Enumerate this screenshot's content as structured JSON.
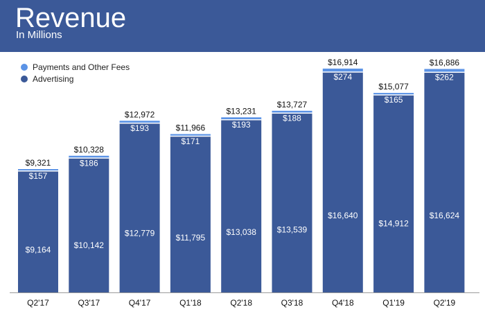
{
  "header": {
    "title": "Revenue",
    "subtitle": "In Millions"
  },
  "colors": {
    "header_bg": "#3b5998",
    "advertising": "#3b5998",
    "payments": "#5b93e6"
  },
  "chart_data": {
    "type": "bar",
    "stacked": true,
    "title": "Revenue",
    "subtitle": "In Millions",
    "categories": [
      "Q2'17",
      "Q3'17",
      "Q4'17",
      "Q1'18",
      "Q2'18",
      "Q3'18",
      "Q4'18",
      "Q1'19",
      "Q2'19"
    ],
    "series": [
      {
        "name": "Advertising",
        "values": [
          9164,
          10142,
          12779,
          11795,
          13038,
          13539,
          16640,
          14912,
          16624
        ]
      },
      {
        "name": "Payments and Other Fees",
        "values": [
          157,
          186,
          193,
          171,
          193,
          188,
          274,
          165,
          262
        ]
      }
    ],
    "totals": [
      9321,
      10328,
      12972,
      11966,
      13231,
      13727,
      16914,
      15077,
      16886
    ],
    "legend_position": "top-left",
    "grid": false,
    "ylim": [
      0,
      16914
    ]
  }
}
